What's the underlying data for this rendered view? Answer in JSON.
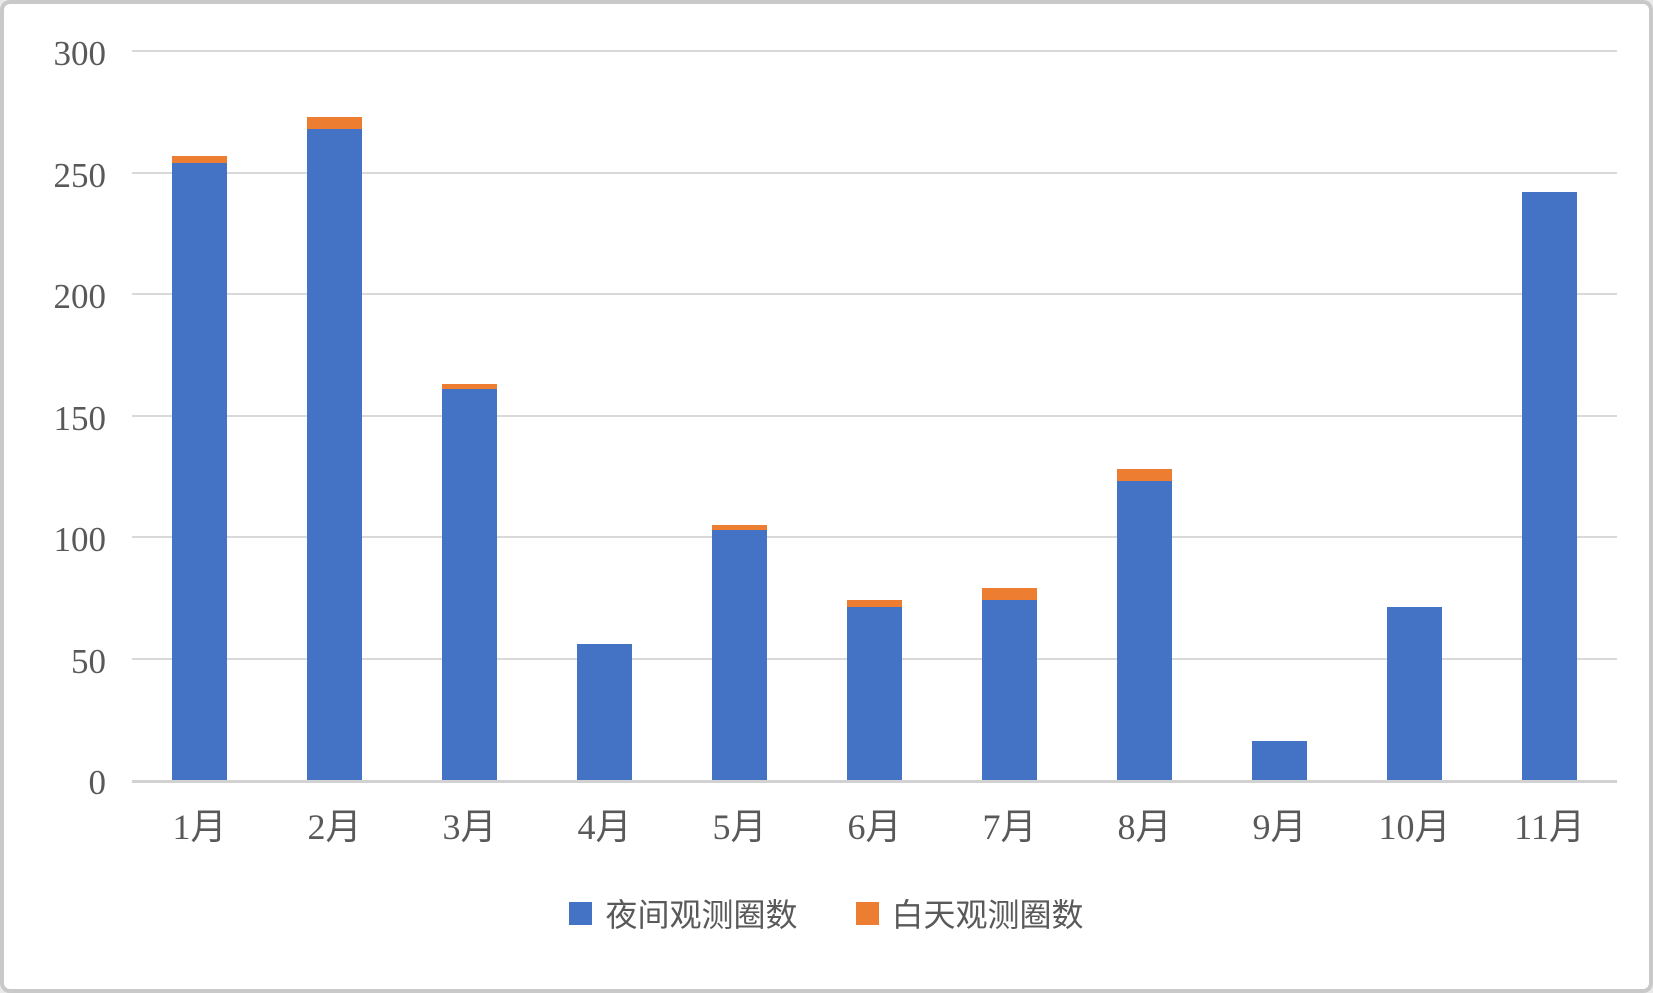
{
  "chart_data": {
    "type": "bar",
    "stacked": true,
    "categories": [
      "1月",
      "2月",
      "3月",
      "4月",
      "5月",
      "6月",
      "7月",
      "8月",
      "9月",
      "10月",
      "11月"
    ],
    "series": [
      {
        "name": "夜间观测圈数",
        "color": "#4472C4",
        "values": [
          254,
          268,
          161,
          56,
          103,
          71,
          74,
          123,
          16,
          71,
          242
        ]
      },
      {
        "name": "白天观测圈数",
        "color": "#ED7D31",
        "values": [
          3,
          5,
          2,
          0,
          2,
          3,
          5,
          5,
          0,
          0,
          0
        ]
      }
    ],
    "ylim": [
      0,
      300
    ],
    "yticks": [
      0,
      50,
      100,
      150,
      200,
      250,
      300
    ],
    "grid": true,
    "legend_position": "bottom",
    "axis_label_color": "#595959",
    "gridline_color": "#d9d9d9"
  }
}
